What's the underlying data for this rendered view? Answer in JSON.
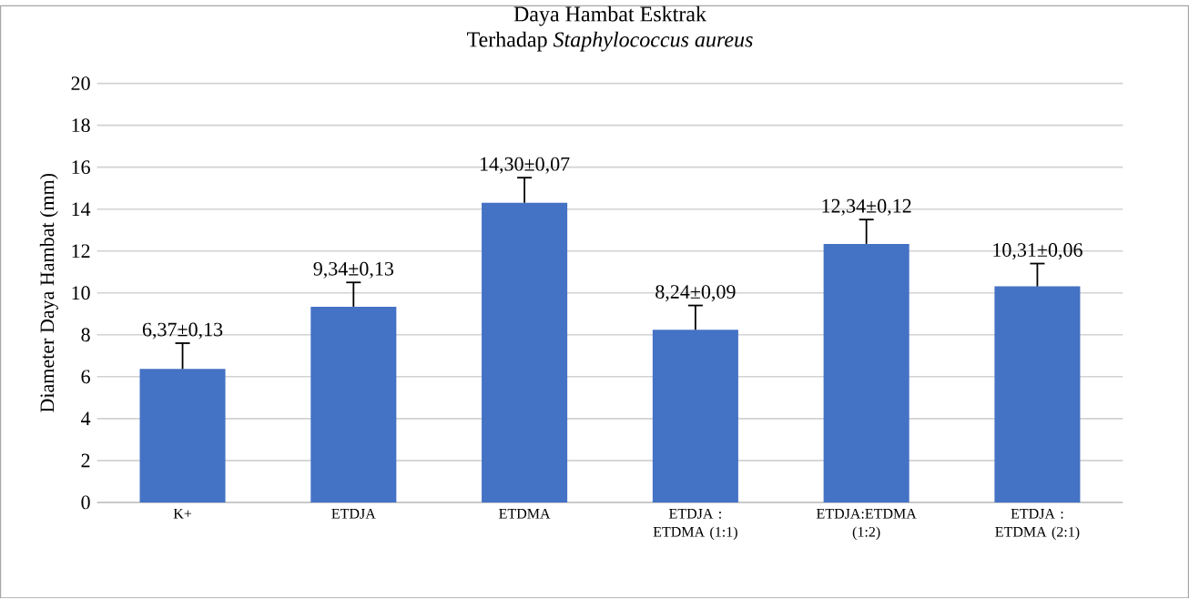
{
  "chart_data": {
    "type": "bar",
    "title": "Daya Hambat Esktrak",
    "subtitle": "Terhadap *Staphylococcus aureus*",
    "ylabel": "Diameter  Daya Hambat (mm)",
    "categories": [
      "K+",
      "ETDJA",
      "ETDMA",
      "ETDJA : ETDMA (1:1)",
      "ETDJA:ETDMA (1:2)",
      "ETDJA : ETDMA (2:1)"
    ],
    "values": [
      6.37,
      9.34,
      14.3,
      8.24,
      12.34,
      10.31
    ],
    "value_labels": [
      "6,37±0,13",
      "9,34±0,13",
      "14,30±0,07",
      "8,24±0,09",
      "12,34±0,12",
      "10,31±0,06"
    ],
    "errors": [
      [
        6.37,
        7.6
      ],
      [
        9.34,
        10.5
      ],
      [
        14.3,
        15.5
      ],
      [
        8.24,
        9.4
      ],
      [
        12.34,
        13.5
      ],
      [
        10.31,
        11.4
      ]
    ],
    "color": "#4472c4",
    "ylim": [
      0,
      20
    ],
    "yticks": [
      0,
      2,
      4,
      6,
      8,
      10,
      12,
      14,
      16,
      18,
      20
    ],
    "grid": "y"
  }
}
